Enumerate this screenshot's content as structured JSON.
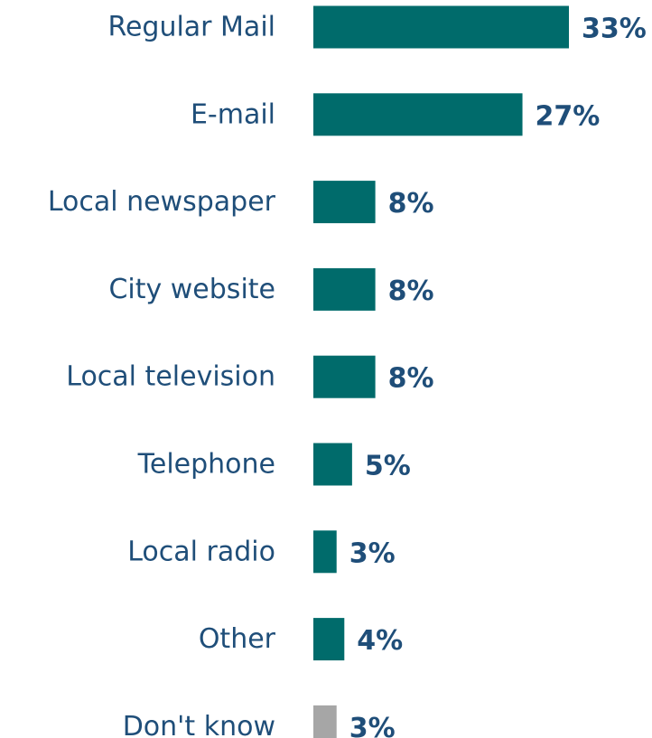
{
  "chart_data": {
    "type": "bar",
    "orientation": "horizontal",
    "categories": [
      "Regular Mail",
      "E-mail",
      "Local newspaper",
      "City website",
      "Local television",
      "Telephone",
      "Local radio",
      "Other",
      "Don't know"
    ],
    "values": [
      33,
      27,
      8,
      8,
      8,
      5,
      3,
      4,
      3
    ],
    "value_labels": [
      "33%",
      "27%",
      "8%",
      "8%",
      "8%",
      "5%",
      "3%",
      "4%",
      "3%"
    ],
    "title": "",
    "xlabel": "",
    "ylabel": "",
    "xlim": [
      0,
      33
    ],
    "grid": false,
    "legend": "none",
    "bar_colors": [
      "#006b6b",
      "#006b6b",
      "#006b6b",
      "#006b6b",
      "#006b6b",
      "#006b6b",
      "#006b6b",
      "#006b6b",
      "#a6a6a6"
    ],
    "label_color": "#1f4e79"
  }
}
